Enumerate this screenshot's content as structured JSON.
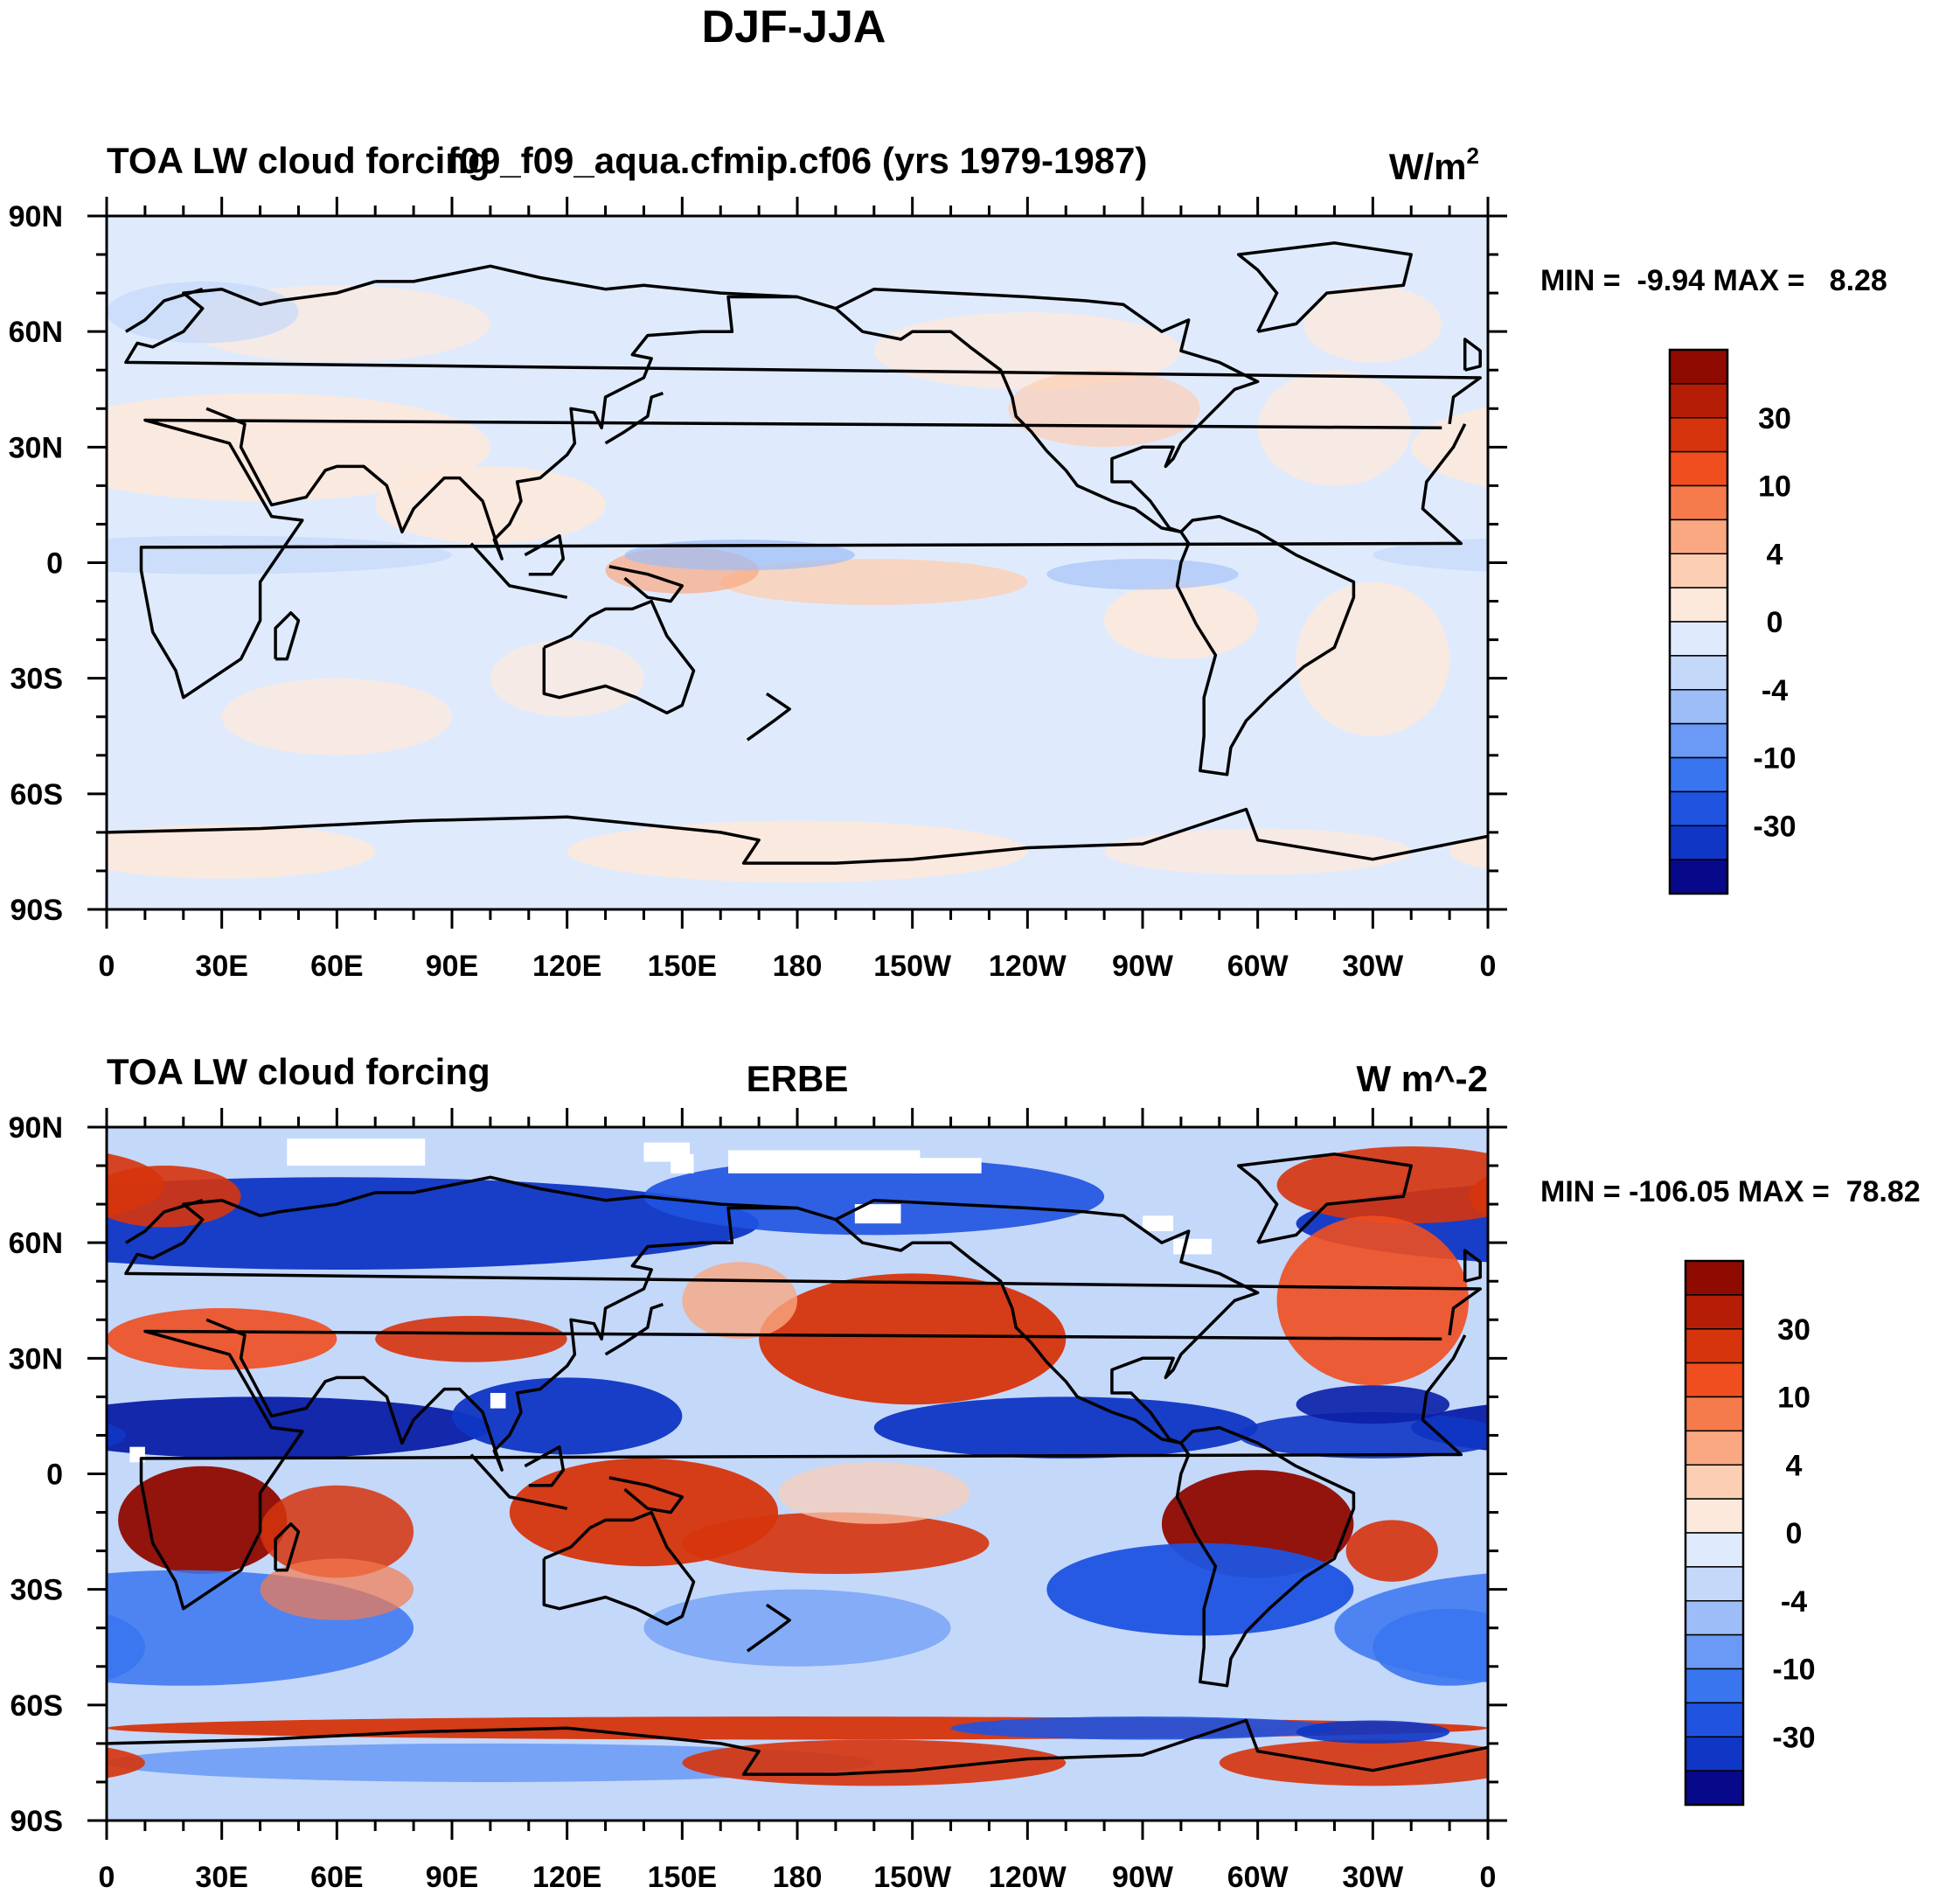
{
  "figure_title": "DJF-JJA",
  "colors": {
    "palette": [
      "#08088a",
      "#0a1fa6",
      "#0f36c4",
      "#1f53e0",
      "#3a75f0",
      "#6a9af5",
      "#9cbdf7",
      "#c4d8fa",
      "#dfebfd",
      "#fde9dc",
      "#fccfb4",
      "#f9a882",
      "#f57b4d",
      "#f04e1f",
      "#d6340c",
      "#b51d06",
      "#8f0a00"
    ],
    "coast": "#000000",
    "missing": "#ffffff"
  },
  "chart_data": [
    {
      "type": "heatmap",
      "title_left": "TOA LW cloud forcing",
      "title_center": "f09_f09_aqua.cfmip.cf06 (yrs 1979-1987)",
      "units": "W/m",
      "units_sup": "2",
      "stats_text": "MIN =  -9.94 MAX =   8.28",
      "min": -9.94,
      "max": 8.28,
      "colorbar_levels": [
        -40,
        -30,
        -20,
        -10,
        -6,
        -4,
        -2,
        0,
        2,
        4,
        6,
        10,
        20,
        30,
        40
      ],
      "colorbar_labels": [
        "30",
        "10",
        "4",
        "0",
        "-4",
        "-10",
        "-30"
      ],
      "xticks": [
        "0",
        "30E",
        "60E",
        "90E",
        "120E",
        "150E",
        "180",
        "150W",
        "120W",
        "90W",
        "60W",
        "30W",
        "0"
      ],
      "yticks": [
        "90N",
        "60N",
        "30N",
        "0",
        "30S",
        "60S",
        "90S"
      ],
      "xlim": [
        0,
        360
      ],
      "ylim": [
        -90,
        90
      ],
      "grid": false
    },
    {
      "type": "heatmap",
      "title_left": "TOA LW cloud forcing",
      "title_center": "ERBE",
      "units": "W m^-2",
      "units_sup": "",
      "stats_text": "MIN = -106.05 MAX =  78.82",
      "min": -106.05,
      "max": 78.82,
      "colorbar_levels": [
        -40,
        -30,
        -20,
        -10,
        -6,
        -4,
        -2,
        0,
        2,
        4,
        6,
        10,
        20,
        30,
        40
      ],
      "colorbar_labels": [
        "30",
        "10",
        "4",
        "0",
        "-4",
        "-10",
        "-30"
      ],
      "xticks": [
        "0",
        "30E",
        "60E",
        "90E",
        "120E",
        "150E",
        "180",
        "150W",
        "120W",
        "90W",
        "60W",
        "30W",
        "0"
      ],
      "yticks": [
        "90N",
        "60N",
        "30N",
        "0",
        "30S",
        "60S",
        "90S"
      ],
      "xlim": [
        0,
        360
      ],
      "ylim": [
        -90,
        90
      ],
      "grid": false
    }
  ]
}
